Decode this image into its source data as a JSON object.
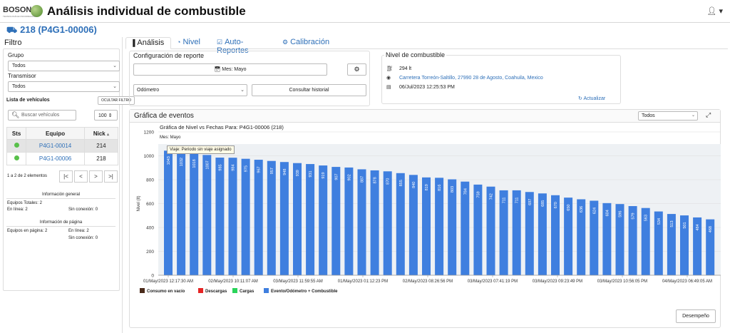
{
  "header": {
    "brand": "BOSON",
    "brand_sub": "TECNOLOGÍA EN INFORMACIÓN",
    "title": "Análisis individual de combustible",
    "user_icon": "user-icon",
    "caret": "▾"
  },
  "vehicle": {
    "title": "218 (P4G1-00006)",
    "icon": "truck-icon"
  },
  "sidebar": {
    "title": "Filtro",
    "group_label": "Grupo",
    "group_value": "Todos",
    "transmitter_label": "Transmisor",
    "transmitter_value": "Todos",
    "list_label": "Lista de vehículos",
    "hide_filter": "OCULTAR FILTRO",
    "search_placeholder": "Buscar vehículos",
    "page_size": "100",
    "table": {
      "headers": [
        "Sts",
        "Equipo",
        "Nick"
      ],
      "rows": [
        {
          "equipo": "P4G1-00014",
          "nick": "214"
        },
        {
          "equipo": "P4G1-00006",
          "nick": "218"
        }
      ]
    },
    "pager_text": "1 a 2 de 2 elementos",
    "pager_buttons": [
      "|<",
      "<",
      ">",
      ">|"
    ],
    "general_info": {
      "title": "Información general",
      "total": "Equipos Totales: 2",
      "online": "En línea: 2",
      "offline": "Sin conexión: 0"
    },
    "page_info": {
      "title": "Información de página",
      "on_page": "Equipos en página: 2",
      "online": "En línea: 2",
      "offline": "Sin conexión: 0"
    }
  },
  "tabs": [
    "Análisis",
    "Nivel",
    "Auto-Reportes",
    "Calibración"
  ],
  "config": {
    "title": "Configuración de reporte",
    "month_button": "Mes: Mayo",
    "metric": "Odómetro",
    "history_button": "Consultar historial"
  },
  "fuel": {
    "title": "Nivel de combustible",
    "level": "294 lt",
    "location": "Carretera Torreón-Saltillo, 27990 28 de Agosto, Coahuila, Mexico",
    "timestamp": "06/Jul/2023 12:25:53 PM",
    "refresh": "Actualizar"
  },
  "events": {
    "title": "Gráfica de eventos",
    "filter_value": "Todos",
    "performance_button": "Desempeño"
  },
  "chart_data": {
    "type": "bar",
    "title": "Gráfica de Nivel vs Fechas Para: P4G1-00006 (218)",
    "subtitle": "Mes: Mayo",
    "ylabel": "Nivel (lt)",
    "ylim": [
      0,
      1200
    ],
    "yticks": [
      0,
      200,
      400,
      600,
      800,
      1000,
      1200
    ],
    "x_tick_labels": [
      "01/May/2023 12:17:30 AM",
      "02/May/2023 10:11:07 AM",
      "03/May/2023 11:59:55 AM",
      "01/May/2023 01:12:23 PM",
      "02/May/2023 08:26:56 PM",
      "03/May/2023 07:41:19 PM",
      "03/May/2023 09:23:49 PM",
      "03/May/2023 10:56:05 PM",
      "04/May/2023 06:49:05 AM"
    ],
    "values": [
      1043,
      1032,
      1018,
      1007,
      985,
      984,
      975,
      967,
      957,
      948,
      939,
      931,
      919,
      907,
      902,
      887,
      878,
      870,
      855,
      840,
      819,
      816,
      803,
      784,
      759,
      742,
      711,
      711,
      697,
      685,
      670,
      650,
      636,
      624,
      604,
      596,
      579,
      563,
      534,
      513,
      501,
      484,
      468,
      450
    ],
    "tooltip": "Viaje: Periodo sin viaje asignado",
    "bar_color": "#3f7fdf",
    "legend": [
      {
        "name": "Consumo en vacío",
        "color": "#4a2a1a"
      },
      {
        "name": "Descargas",
        "color": "#e62424"
      },
      {
        "name": "Cargas",
        "color": "#2ad45a"
      },
      {
        "name": "Evento/Odómetro + Combustible",
        "color": "#3f7fdf"
      }
    ]
  }
}
